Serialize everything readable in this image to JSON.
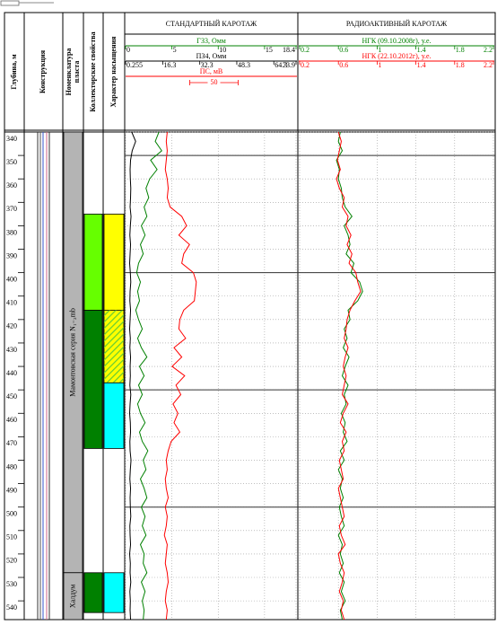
{
  "chart_data": {
    "type": "well_log",
    "depth_axis": {
      "label": "Глубина, м",
      "ylim": [
        340,
        548
      ],
      "yticks": [
        340,
        350,
        360,
        370,
        380,
        390,
        400,
        410,
        420,
        430,
        440,
        450,
        460,
        470,
        480,
        490,
        500,
        510,
        520,
        530,
        540
      ],
      "major_lines": [
        350,
        400,
        450,
        500
      ]
    },
    "columns": {
      "construction": "Конструкция",
      "nomenclature": [
        "Номенклатура",
        "пласта"
      ],
      "reservoir": "Коллекторские свойства",
      "saturation": "Характер насыщения"
    },
    "nomenclature_intervals": [
      {
        "name": "Мамонтовская серия N₁₋₂mb",
        "top": 340,
        "bottom": 528,
        "color": "#b4b4b4"
      },
      {
        "name": "Халдум",
        "top": 528,
        "bottom": 548,
        "color": "#b4b4b4"
      }
    ],
    "reservoir_intervals": [
      {
        "top": 375,
        "bottom": 416,
        "color": "#66ff00"
      },
      {
        "top": 416,
        "bottom": 475,
        "color": "#008000"
      },
      {
        "top": 528,
        "bottom": 545,
        "color": "#008000"
      }
    ],
    "saturation_intervals": [
      {
        "top": 375,
        "bottom": 416,
        "color": "#ffff00"
      },
      {
        "top": 416,
        "bottom": 447,
        "color": "#ffff00",
        "hatch": "#66cc33"
      },
      {
        "top": 447,
        "bottom": 475,
        "color": "#00ffff"
      },
      {
        "top": 528,
        "bottom": 545,
        "color": "#00ffff"
      }
    ],
    "depth": [
      340,
      344,
      348,
      352,
      356,
      360,
      364,
      368,
      372,
      376,
      380,
      384,
      388,
      392,
      396,
      400,
      404,
      408,
      412,
      416,
      420,
      424,
      428,
      432,
      436,
      440,
      444,
      448,
      452,
      456,
      460,
      464,
      468,
      472,
      476,
      480,
      484,
      488,
      492,
      496,
      500,
      504,
      508,
      512,
      516,
      520,
      524,
      528,
      532,
      536,
      540,
      544,
      548
    ],
    "tracks": [
      {
        "title": "СТАНДАРТНЫЙ КАРОТАЖ",
        "curves": [
          {
            "name": "ГЗ3, Омм",
            "color": "#008000",
            "xlim": [
              0,
              18.4
            ],
            "xticks": [
              0,
              5,
              10,
              15,
              18.4
            ],
            "values": [
              3.6,
              3.2,
              3.9,
              2.7,
              3.4,
              2.6,
              2.2,
              2.5,
              2.0,
              2.3,
              1.7,
              2.1,
              1.6,
              1.9,
              1.4,
              1.2,
              1.6,
              1.3,
              1.5,
              1.1,
              1.4,
              1.8,
              1.3,
              1.7,
              2.3,
              1.5,
              2.0,
              1.4,
              1.8,
              1.3,
              1.6,
              2.1,
              1.5,
              1.8,
              2.4,
              1.9,
              2.2,
              1.6,
              2.0,
              2.3,
              1.7,
              2.1,
              1.8,
              2.2,
              1.6,
              2.0,
              1.9,
              2.3,
              1.7,
              2.1,
              1.8,
              2.0,
              1.9
            ]
          },
          {
            "name": "ПЗ4, Омм",
            "color": "#000000",
            "xlim": [
              0.255,
              73.9
            ],
            "xticks": [
              0.255,
              16.3,
              32.3,
              48.3,
              64.3,
              73.9
            ],
            "values": [
              2.9,
              4.6,
              3.1,
              2.4,
              2.2,
              2.3,
              2.5,
              2.4,
              2.2,
              2.6,
              2.3,
              2.1,
              2.4,
              2.2,
              2.0,
              2.3,
              2.5,
              2.2,
              2.1,
              2.4,
              2.2,
              2.0,
              2.3,
              2.1,
              2.4,
              2.2,
              2.3,
              2.1,
              2.5,
              2.2,
              2.0,
              2.3,
              2.4,
              2.1,
              2.2,
              2.6,
              2.3,
              2.1,
              2.4,
              2.2,
              2.3,
              2.5,
              2.1,
              2.2,
              2.4,
              2.0,
              2.3,
              2.2,
              2.5,
              2.1,
              2.3,
              2.2,
              2.4
            ]
          },
          {
            "name": "ПС, мВ",
            "color": "#ff0000",
            "xlim": [
              0,
              176
            ],
            "scale_bar": 50,
            "values": [
              43,
              42,
              43,
              42,
              41,
              43,
              44,
              43,
              46,
              58,
              63,
              55,
              66,
              60,
              58,
              70,
              73,
              72,
              71,
              60,
              56,
              55,
              62,
              50,
              58,
              48,
              61,
              52,
              57,
              49,
              54,
              50,
              56,
              47,
              44,
              42,
              43,
              41,
              42,
              44,
              41,
              43,
              42,
              40,
              43,
              42,
              41,
              43,
              44,
              42,
              41,
              43,
              42
            ]
          }
        ]
      },
      {
        "title": "РАДИОАКТИВНЫЙ КАРОТАЖ",
        "curves": [
          {
            "name": "НГК (09.10.2008г), у.е.",
            "color": "#008000",
            "xlim": [
              0.2,
              2.2
            ],
            "xticks": [
              0.2,
              0.6,
              1,
              1.4,
              1.8,
              2.2
            ],
            "values": [
              0.62,
              0.6,
              0.64,
              0.58,
              0.61,
              0.6,
              0.63,
              0.64,
              0.67,
              0.74,
              0.66,
              0.7,
              0.72,
              0.68,
              0.76,
              0.73,
              0.82,
              0.85,
              0.8,
              0.7,
              0.72,
              0.66,
              0.69,
              0.65,
              0.71,
              0.67,
              0.64,
              0.7,
              0.66,
              0.68,
              0.63,
              0.67,
              0.65,
              0.69,
              0.62,
              0.66,
              0.6,
              0.64,
              0.62,
              0.65,
              0.61,
              0.63,
              0.66,
              0.6,
              0.64,
              0.62,
              0.65,
              0.61,
              0.66,
              0.63,
              0.67,
              0.62,
              0.64
            ]
          },
          {
            "name": "НГК (22.10.2012г), у.е.",
            "color": "#ff0000",
            "xlim": [
              0.2,
              2.2
            ],
            "xticks": [
              0.2,
              0.6,
              1,
              1.4,
              1.8,
              2.2
            ],
            "values": [
              0.6,
              0.63,
              0.61,
              0.59,
              0.62,
              0.58,
              0.61,
              0.66,
              0.64,
              0.7,
              0.68,
              0.73,
              0.69,
              0.74,
              0.71,
              0.78,
              0.8,
              0.83,
              0.77,
              0.72,
              0.69,
              0.68,
              0.66,
              0.7,
              0.67,
              0.65,
              0.68,
              0.66,
              0.64,
              0.7,
              0.65,
              0.62,
              0.68,
              0.64,
              0.66,
              0.61,
              0.63,
              0.65,
              0.6,
              0.62,
              0.64,
              0.66,
              0.61,
              0.63,
              0.67,
              0.6,
              0.62,
              0.66,
              0.64,
              0.61,
              0.65,
              0.63,
              0.66
            ]
          }
        ]
      }
    ]
  }
}
